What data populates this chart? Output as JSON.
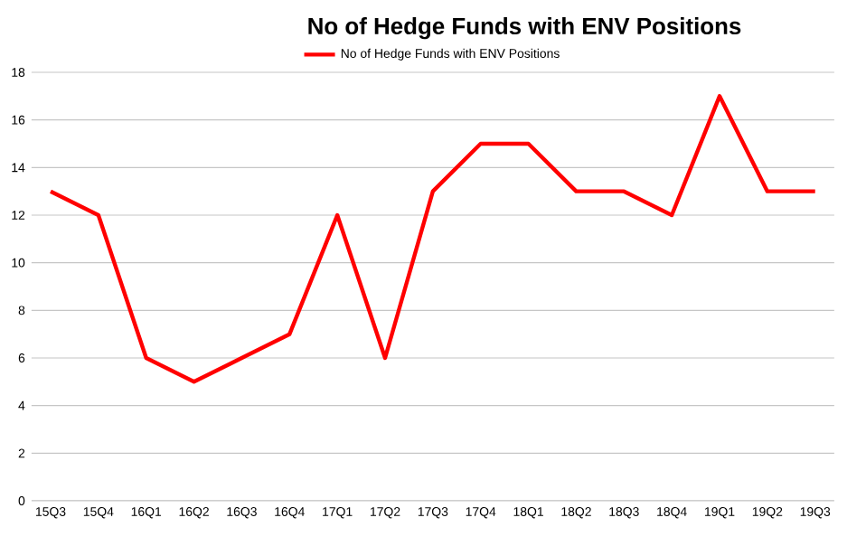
{
  "chart_data": {
    "type": "line",
    "title": "No of Hedge Funds with ENV Positions",
    "categories": [
      "15Q3",
      "15Q4",
      "16Q1",
      "16Q2",
      "16Q3",
      "16Q4",
      "17Q1",
      "17Q2",
      "17Q3",
      "17Q4",
      "18Q1",
      "18Q2",
      "18Q3",
      "18Q4",
      "19Q1",
      "19Q2",
      "19Q3"
    ],
    "series": [
      {
        "name": "No of Hedge Funds with ENV Positions",
        "color": "#ff0000",
        "values": [
          13,
          12,
          6,
          5,
          6,
          7,
          12,
          6,
          13,
          15,
          15,
          13,
          13,
          12,
          17,
          13,
          13
        ]
      }
    ],
    "ylim": [
      0,
      18
    ],
    "yticks": [
      0,
      2,
      4,
      6,
      8,
      10,
      12,
      14,
      16,
      18
    ],
    "grid": "y",
    "legend": "top"
  }
}
